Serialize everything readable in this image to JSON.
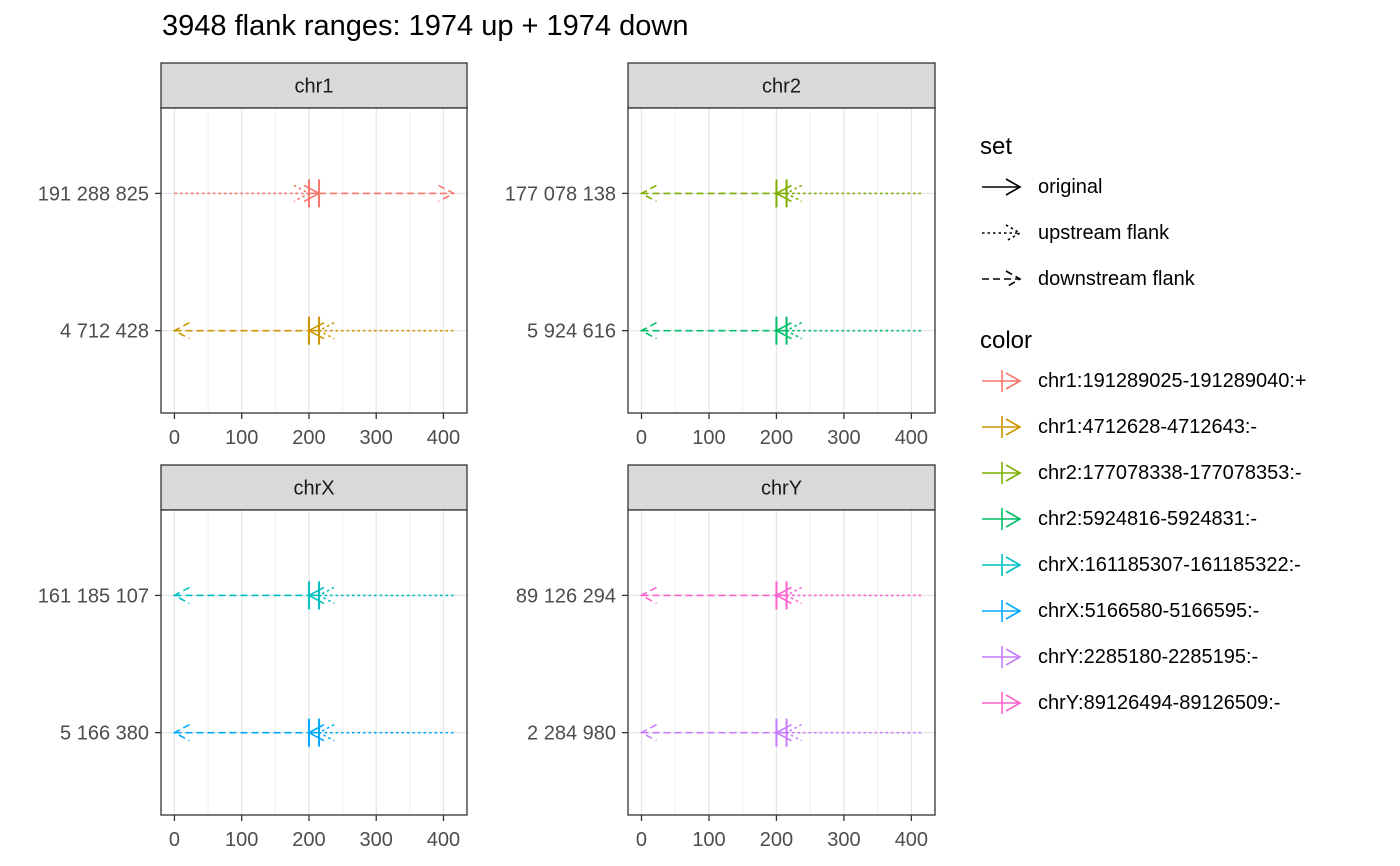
{
  "chart_data": {
    "type": "range-arrows",
    "title": "3948 flank ranges: 1974 up + 1974 down",
    "x_ticks": [
      0,
      100,
      200,
      300,
      400
    ],
    "xlim": [
      -20,
      435
    ],
    "grid": true,
    "legend_position": "right",
    "panels": [
      {
        "strip": "chr1",
        "rows": [
          {
            "label": "191 288 825",
            "color": "#F8766D",
            "original": [
              200,
              215
            ],
            "upstream": [
              0,
              200
            ],
            "downstream": [
              215,
              415
            ],
            "original_arrow": "right",
            "up_arrow": "right",
            "down_arrow": "right"
          },
          {
            "label": "4 712 428",
            "color": "#CD9600",
            "original": [
              200,
              215
            ],
            "upstream": [
              215,
              415
            ],
            "downstream": [
              0,
              200
            ],
            "original_arrow": "left",
            "up_arrow": "left",
            "down_arrow": "left"
          }
        ]
      },
      {
        "strip": "chr2",
        "rows": [
          {
            "label": "177 078 138",
            "color": "#7CAE00",
            "original": [
              200,
              215
            ],
            "upstream": [
              215,
              415
            ],
            "downstream": [
              0,
              200
            ],
            "original_arrow": "left",
            "up_arrow": "left",
            "down_arrow": "left"
          },
          {
            "label": "5 924 616",
            "color": "#00BE67",
            "original": [
              200,
              215
            ],
            "upstream": [
              215,
              415
            ],
            "downstream": [
              0,
              200
            ],
            "original_arrow": "left",
            "up_arrow": "left",
            "down_arrow": "left"
          }
        ]
      },
      {
        "strip": "chrX",
        "rows": [
          {
            "label": "161 185 107",
            "color": "#00BFC4",
            "original": [
              200,
              215
            ],
            "upstream": [
              215,
              415
            ],
            "downstream": [
              0,
              200
            ],
            "original_arrow": "left",
            "up_arrow": "left",
            "down_arrow": "left"
          },
          {
            "label": "5 166 380",
            "color": "#00A9FF",
            "original": [
              200,
              215
            ],
            "upstream": [
              215,
              415
            ],
            "downstream": [
              0,
              200
            ],
            "original_arrow": "left",
            "up_arrow": "left",
            "down_arrow": "left"
          }
        ]
      },
      {
        "strip": "chrY",
        "rows": [
          {
            "label": "89 126 294",
            "color": "#FF61CC",
            "original": [
              200,
              215
            ],
            "upstream": [
              215,
              415
            ],
            "downstream": [
              0,
              200
            ],
            "original_arrow": "left",
            "up_arrow": "left",
            "down_arrow": "left"
          },
          {
            "label": "2 284 980",
            "color": "#C77CFF",
            "original": [
              200,
              215
            ],
            "upstream": [
              215,
              415
            ],
            "downstream": [
              0,
              200
            ],
            "original_arrow": "left",
            "up_arrow": "left",
            "down_arrow": "left"
          }
        ]
      }
    ],
    "legend": {
      "set": {
        "title": "set",
        "items": [
          {
            "label": "original",
            "dash": "solid"
          },
          {
            "label": "upstream flank",
            "dash": "dotted"
          },
          {
            "label": "downstream flank",
            "dash": "dashed"
          }
        ]
      },
      "color": {
        "title": "color",
        "items": [
          {
            "label": "chr1:191289025-191289040:+",
            "color": "#F8766D"
          },
          {
            "label": "chr1:4712628-4712643:-",
            "color": "#CD9600"
          },
          {
            "label": "chr2:177078338-177078353:-",
            "color": "#7CAE00"
          },
          {
            "label": "chr2:5924816-5924831:-",
            "color": "#00BE67"
          },
          {
            "label": "chrX:161185307-161185322:-",
            "color": "#00BFC4"
          },
          {
            "label": "chrX:5166580-5166595:-",
            "color": "#00A9FF"
          },
          {
            "label": "chrY:2285180-2285195:-",
            "color": "#C77CFF"
          },
          {
            "label": "chrY:89126494-89126509:-",
            "color": "#FF61CC"
          }
        ]
      }
    }
  }
}
